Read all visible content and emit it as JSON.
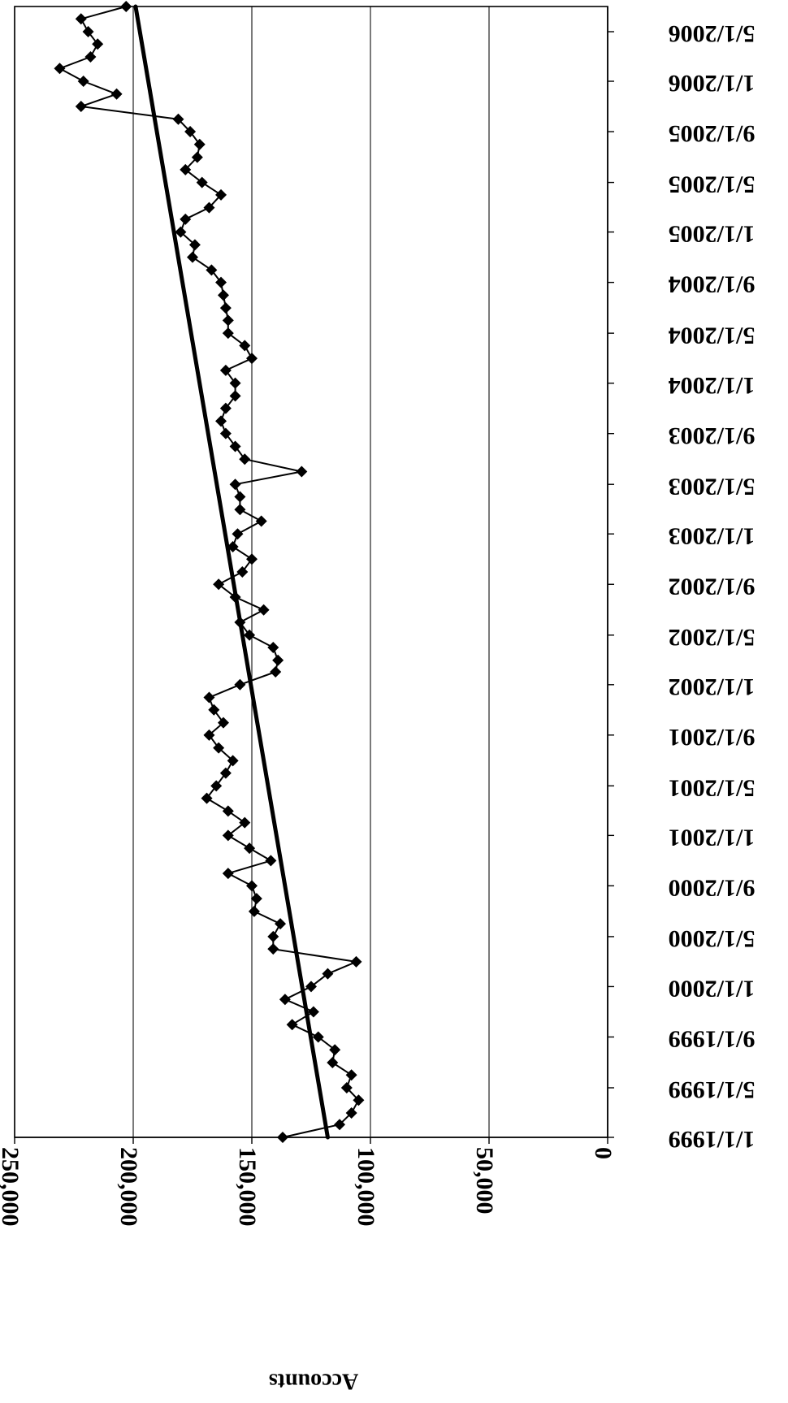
{
  "chart_data": {
    "type": "line",
    "title": "",
    "orientation": "rotated 180 degrees (printed upside-down)",
    "x_axis": {
      "type": "date",
      "label": "",
      "range": [
        "1999-01-01",
        "2006-07-01"
      ],
      "tick_labels": [
        "1/1/1999",
        "5/1/1999",
        "9/1/1999",
        "1/1/2000",
        "5/1/2000",
        "9/1/2000",
        "1/1/2001",
        "5/1/2001",
        "9/1/2001",
        "1/1/2002",
        "5/1/2002",
        "9/1/2002",
        "1/1/2003",
        "5/1/2003",
        "9/1/2003",
        "1/1/2004",
        "5/1/2004",
        "9/1/2004",
        "1/1/2005",
        "5/1/2005",
        "9/1/2005",
        "1/1/2006",
        "5/1/2006"
      ]
    },
    "y_axis": {
      "label": "Accounts",
      "range": [
        0,
        250000
      ],
      "tick_values": [
        0,
        50000,
        100000,
        150000,
        200000,
        250000
      ],
      "tick_labels": [
        "0",
        "50,000",
        "100,000",
        "150,000",
        "200,000",
        "250,000"
      ],
      "gridlines": true
    },
    "legend": "none",
    "series": [
      {
        "style": "line-with-diamond-markers",
        "color": "#000000",
        "dates": [
          "1999-01-01",
          "1999-02-01",
          "1999-03-01",
          "1999-04-01",
          "1999-05-01",
          "1999-06-01",
          "1999-07-01",
          "1999-08-01",
          "1999-09-01",
          "1999-10-01",
          "1999-11-01",
          "1999-12-01",
          "2000-01-01",
          "2000-02-01",
          "2000-03-01",
          "2000-04-01",
          "2000-05-01",
          "2000-06-01",
          "2000-07-01",
          "2000-08-01",
          "2000-09-01",
          "2000-10-01",
          "2000-11-01",
          "2000-12-01",
          "2001-01-01",
          "2001-02-01",
          "2001-03-01",
          "2001-04-01",
          "2001-05-01",
          "2001-06-01",
          "2001-07-01",
          "2001-08-01",
          "2001-09-01",
          "2001-10-01",
          "2001-11-01",
          "2001-12-01",
          "2002-01-01",
          "2002-02-01",
          "2002-03-01",
          "2002-04-01",
          "2002-05-01",
          "2002-06-01",
          "2002-07-01",
          "2002-08-01",
          "2002-09-01",
          "2002-10-01",
          "2002-11-01",
          "2002-12-01",
          "2003-01-01",
          "2003-02-01",
          "2003-03-01",
          "2003-04-01",
          "2003-05-01",
          "2003-06-01",
          "2003-07-01",
          "2003-08-01",
          "2003-09-01",
          "2003-10-01",
          "2003-11-01",
          "2003-12-01",
          "2004-01-01",
          "2004-02-01",
          "2004-03-01",
          "2004-04-01",
          "2004-05-01",
          "2004-06-01",
          "2004-07-01",
          "2004-08-01",
          "2004-09-01",
          "2004-10-01",
          "2004-11-01",
          "2004-12-01",
          "2005-01-01",
          "2005-02-01",
          "2005-03-01",
          "2005-04-01",
          "2005-05-01",
          "2005-06-01",
          "2005-07-01",
          "2005-08-01",
          "2005-09-01",
          "2005-10-01",
          "2005-11-01",
          "2005-12-01",
          "2006-01-01",
          "2006-02-01",
          "2006-03-01",
          "2006-04-01",
          "2006-05-01",
          "2006-06-01",
          "2006-07-01"
        ],
        "values": [
          137000,
          113000,
          108000,
          105000,
          110000,
          108000,
          116000,
          115000,
          122000,
          133000,
          124000,
          136000,
          125000,
          118000,
          106000,
          141000,
          141000,
          138000,
          149000,
          148000,
          150000,
          160000,
          142000,
          151000,
          160000,
          153000,
          160000,
          169000,
          165000,
          161000,
          158000,
          164000,
          168000,
          162000,
          166000,
          168000,
          155000,
          140000,
          139000,
          141000,
          151000,
          155000,
          145000,
          157000,
          164000,
          154000,
          150000,
          158000,
          156000,
          146000,
          155000,
          155000,
          157000,
          129000,
          153000,
          157000,
          161000,
          163000,
          161000,
          157000,
          157000,
          161000,
          150000,
          153000,
          160000,
          160000,
          161000,
          162000,
          163000,
          167000,
          175000,
          174000,
          180000,
          178000,
          168000,
          163000,
          171000,
          178000,
          173000,
          172000,
          176000,
          181000,
          222000,
          207000,
          221000,
          231000,
          218000,
          215000,
          219000,
          222000,
          203000
        ]
      },
      {
        "style": "trendline",
        "color": "#000000",
        "dates": [
          "1999-01-01",
          "2006-07-01"
        ],
        "values": [
          118000,
          199000
        ]
      }
    ]
  }
}
